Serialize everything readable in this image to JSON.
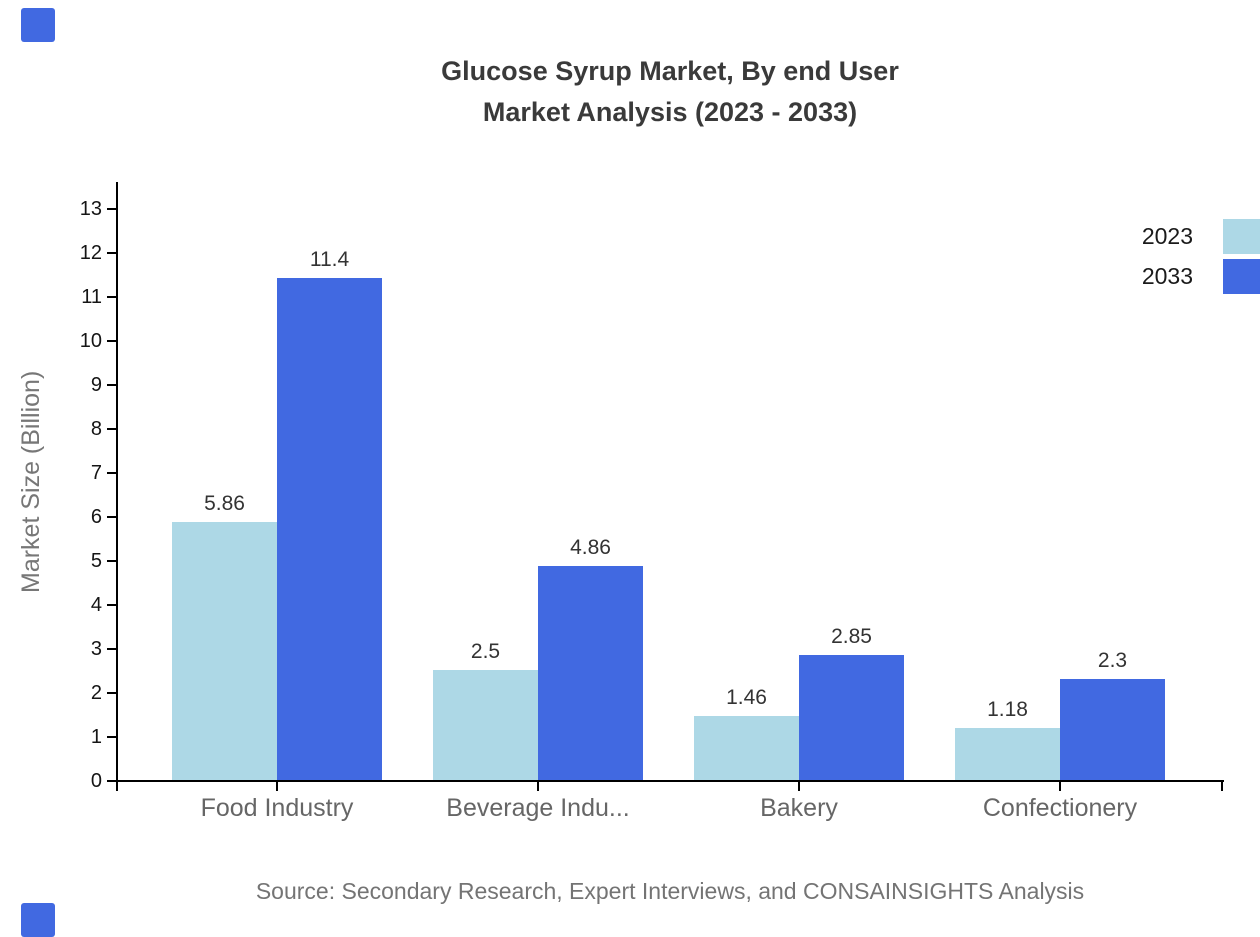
{
  "title": {
    "line1": "Glucose Syrup Market, By end User",
    "line2": "Market Analysis (2023 - 2033)"
  },
  "source": "Source: Secondary Research, Expert Interviews, and CONSAINSIGHTS Analysis",
  "chart_data": {
    "type": "bar",
    "categories": [
      "Food Industry",
      "Beverage Indu...",
      "Bakery",
      "Confectionery"
    ],
    "series": [
      {
        "name": "2023",
        "color": "#ADD8E6",
        "values": [
          5.86,
          2.5,
          1.46,
          1.18
        ]
      },
      {
        "name": "2033",
        "color": "#4169E1",
        "values": [
          11.4,
          4.86,
          2.85,
          2.3
        ]
      }
    ],
    "title": "Glucose Syrup Market, By end User Market Analysis (2023 - 2033)",
    "xlabel": "",
    "ylabel": "Market Size (Billion)",
    "ylim": [
      0,
      13
    ],
    "ytick_step": 1,
    "grid": false,
    "legend_position": "top-right",
    "value_labels_shown": true
  },
  "colors": {
    "series_2023": "#ADD8E6",
    "series_2033": "#4169E1",
    "axis": "#000000",
    "brand_accent": "#4169E1"
  }
}
